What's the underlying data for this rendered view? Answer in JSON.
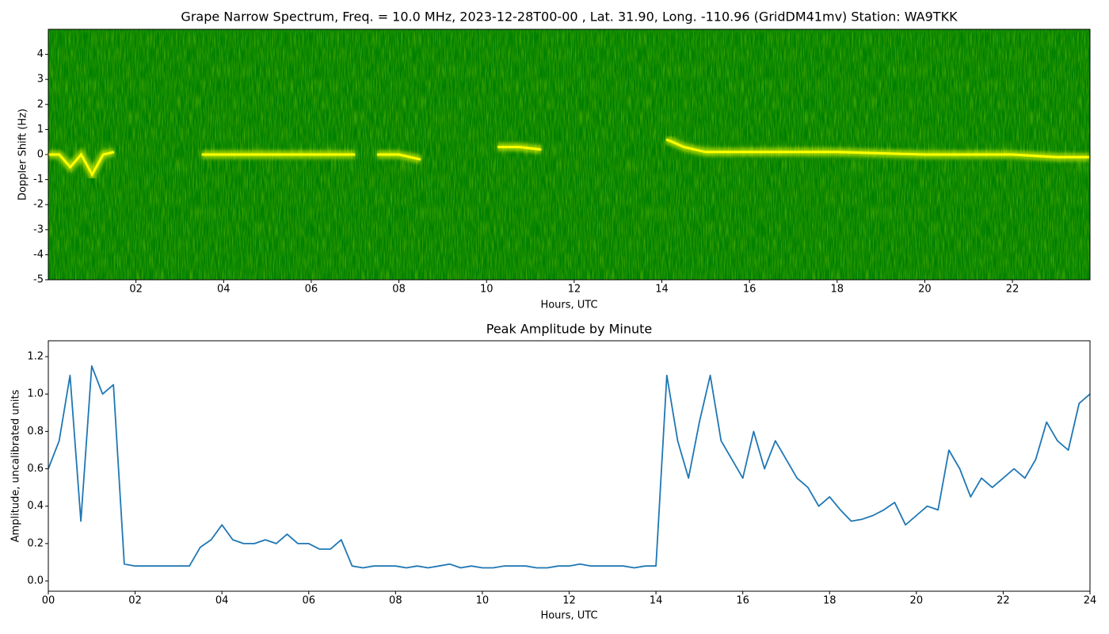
{
  "chart_data": [
    {
      "type": "spectrogram",
      "title": "Grape Narrow Spectrum, Freq. = 10.0 MHz, 2023-12-28T00-00 , Lat.  31.90, Long. -110.96 (GridDM41mv) Station: WA9TKK",
      "x_label": "Hours, UTC",
      "y_label": "Doppler Shift (Hz)",
      "background_color": "#008000",
      "xlim": [
        0,
        23.77
      ],
      "ylim": [
        -5,
        5
      ],
      "xticks": [
        {
          "value": 2,
          "label": "02"
        },
        {
          "value": 4,
          "label": "04"
        },
        {
          "value": 6,
          "label": "06"
        },
        {
          "value": 8,
          "label": "08"
        },
        {
          "value": 10,
          "label": "10"
        },
        {
          "value": 12,
          "label": "12"
        },
        {
          "value": 14,
          "label": "14"
        },
        {
          "value": 16,
          "label": "16"
        },
        {
          "value": 18,
          "label": "18"
        },
        {
          "value": 20,
          "label": "20"
        },
        {
          "value": 22,
          "label": "22"
        }
      ],
      "yticks": [
        -5,
        -4,
        -3,
        -2,
        -1,
        0,
        1,
        2,
        3,
        4
      ],
      "series": [
        {
          "color": "#ffff00",
          "x": [
            0,
            0.25,
            0.5,
            0.75,
            1,
            1.25,
            1.5,
            1.75,
            3.5,
            4,
            4.5,
            5,
            5.5,
            6,
            6.5,
            7,
            7.25,
            7.5,
            8,
            8.5,
            8.75,
            10.25,
            10.75,
            11.25,
            11.5,
            14.1,
            14.25,
            14.5,
            14.75,
            15,
            16,
            17,
            18,
            19,
            20,
            21,
            22,
            23,
            23.75
          ],
          "values": [
            0,
            0,
            -0.5,
            0,
            -0.8,
            0,
            0.1,
            null,
            0,
            0,
            0,
            0,
            0,
            0,
            0,
            0,
            null,
            0,
            0,
            -0.2,
            null,
            0.3,
            0.3,
            0.2,
            null,
            0.6,
            0.5,
            0.3,
            0.2,
            0.1,
            0.1,
            0.1,
            0.1,
            0.05,
            0,
            0,
            0,
            -0.1,
            -0.1
          ]
        }
      ]
    },
    {
      "type": "line",
      "title": "Peak Amplitude by Minute",
      "x_label": "Hours, UTC",
      "y_label": "Amplitude, uncalibrated units",
      "xlim": [
        0,
        24
      ],
      "ylim": [
        -0.055,
        1.285
      ],
      "xticks": [
        {
          "value": 0,
          "label": "00"
        },
        {
          "value": 2,
          "label": "02"
        },
        {
          "value": 4,
          "label": "04"
        },
        {
          "value": 6,
          "label": "06"
        },
        {
          "value": 8,
          "label": "08"
        },
        {
          "value": 10,
          "label": "10"
        },
        {
          "value": 12,
          "label": "12"
        },
        {
          "value": 14,
          "label": "14"
        },
        {
          "value": 16,
          "label": "16"
        },
        {
          "value": 18,
          "label": "18"
        },
        {
          "value": 20,
          "label": "20"
        },
        {
          "value": 22,
          "label": "22"
        },
        {
          "value": 24,
          "label": "24"
        }
      ],
      "yticks": [
        {
          "value": 0,
          "label": "0.0"
        },
        0.2,
        0.4,
        0.6,
        0.8,
        {
          "value": 1,
          "label": "1.0"
        },
        1.2
      ],
      "series": [
        {
          "color": "#1f77b4",
          "x": [
            0,
            0.25,
            0.5,
            0.75,
            1,
            1.25,
            1.5,
            1.75,
            2,
            2.25,
            2.5,
            2.75,
            3,
            3.25,
            3.5,
            3.75,
            4,
            4.25,
            4.5,
            4.75,
            5,
            5.25,
            5.5,
            5.75,
            6,
            6.25,
            6.5,
            6.75,
            7,
            7.25,
            7.5,
            7.75,
            8,
            8.25,
            8.5,
            8.75,
            9,
            9.25,
            9.5,
            9.75,
            10,
            10.25,
            10.5,
            10.75,
            11,
            11.25,
            11.5,
            11.75,
            12,
            12.25,
            12.5,
            12.75,
            13,
            13.25,
            13.5,
            13.75,
            14,
            14.25,
            14.5,
            14.75,
            15,
            15.25,
            15.5,
            15.75,
            16,
            16.25,
            16.5,
            16.75,
            17,
            17.25,
            17.5,
            17.75,
            18,
            18.25,
            18.5,
            18.75,
            19,
            19.25,
            19.5,
            19.75,
            20,
            20.25,
            20.5,
            20.75,
            21,
            21.25,
            21.5,
            21.75,
            22,
            22.25,
            22.5,
            22.75,
            23,
            23.25,
            23.5,
            23.75,
            24
          ],
          "values": [
            0.6,
            0.75,
            1.1,
            0.32,
            1.15,
            1.0,
            1.05,
            0.09,
            0.08,
            0.08,
            0.08,
            0.08,
            0.08,
            0.08,
            0.18,
            0.22,
            0.3,
            0.22,
            0.2,
            0.2,
            0.22,
            0.2,
            0.25,
            0.2,
            0.2,
            0.17,
            0.17,
            0.22,
            0.08,
            0.07,
            0.08,
            0.08,
            0.08,
            0.07,
            0.08,
            0.07,
            0.08,
            0.09,
            0.07,
            0.08,
            0.07,
            0.07,
            0.08,
            0.08,
            0.08,
            0.07,
            0.07,
            0.08,
            0.08,
            0.09,
            0.08,
            0.08,
            0.08,
            0.08,
            0.07,
            0.08,
            0.08,
            1.1,
            0.75,
            0.55,
            0.85,
            1.1,
            0.75,
            0.65,
            0.55,
            0.8,
            0.6,
            0.75,
            0.65,
            0.55,
            0.5,
            0.4,
            0.45,
            0.38,
            0.32,
            0.33,
            0.35,
            0.38,
            0.42,
            0.3,
            0.35,
            0.4,
            0.38,
            0.7,
            0.6,
            0.45,
            0.55,
            0.5,
            0.55,
            0.6,
            0.55,
            0.65,
            0.85,
            0.75,
            0.7,
            0.95,
            1.0
          ]
        }
      ]
    }
  ]
}
